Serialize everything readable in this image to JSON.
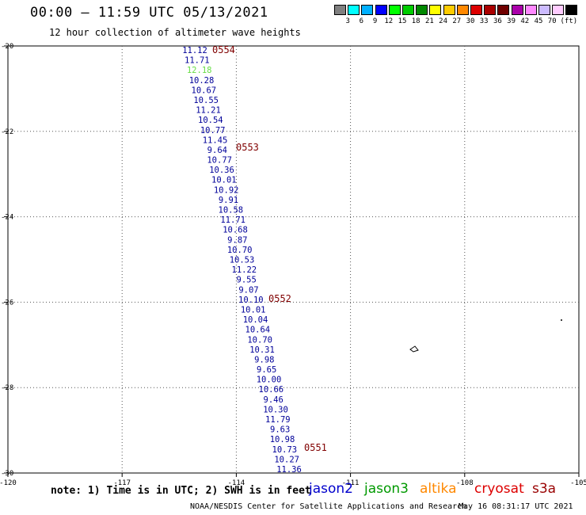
{
  "header": {
    "title": "00:00 – 11:59 UTC 05/13/2021",
    "subtitle": "12 hour collection of altimeter wave heights"
  },
  "colorbar": {
    "colors": [
      "#808080",
      "#00ffff",
      "#00b0ff",
      "#0000ff",
      "#00ff00",
      "#00cc00",
      "#008800",
      "#ffff00",
      "#ffcc00",
      "#ff8800",
      "#dd0000",
      "#aa0000",
      "#700000",
      "#aa00aa",
      "#ff88ff",
      "#ccbbff",
      "#ffccff",
      "#000000"
    ],
    "labels": [
      "3",
      "6",
      "9",
      "12",
      "15",
      "18",
      "21",
      "24",
      "27",
      "30",
      "33",
      "36",
      "39",
      "42",
      "45",
      "70",
      "(ft)"
    ]
  },
  "map": {
    "lon_ticks": [
      "-120",
      "-117",
      "-114",
      "-111",
      "-108",
      "-105"
    ],
    "lat_ticks": [
      "-20",
      "-22",
      "-24",
      "-26",
      "-28",
      "-30"
    ],
    "lon_range": [
      -120,
      -105
    ],
    "lat_range": [
      -20,
      -30
    ]
  },
  "passes": [
    {
      "label": "0554",
      "color": "#800000"
    },
    {
      "label": "0553",
      "color": "#800000"
    },
    {
      "label": "0552",
      "color": "#800000"
    },
    {
      "label": "0551",
      "color": "#800000"
    }
  ],
  "heights": [
    {
      "value": "11.12",
      "color": "#000099"
    },
    {
      "value": "11.71",
      "color": "#000099"
    },
    {
      "value": "12.18",
      "color": "#66dd44"
    },
    {
      "value": "10.28",
      "color": "#000099"
    },
    {
      "value": "10.67",
      "color": "#000099"
    },
    {
      "value": "10.55",
      "color": "#000099"
    },
    {
      "value": "11.21",
      "color": "#000099"
    },
    {
      "value": "10.54",
      "color": "#000099"
    },
    {
      "value": "10.77",
      "color": "#000099"
    },
    {
      "value": "11.45",
      "color": "#000099"
    },
    {
      "value": "9.64",
      "color": "#000099"
    },
    {
      "value": "10.77",
      "color": "#000099"
    },
    {
      "value": "10.36",
      "color": "#000099"
    },
    {
      "value": "10.01",
      "color": "#000099"
    },
    {
      "value": "10.92",
      "color": "#000099"
    },
    {
      "value": "9.91",
      "color": "#000099"
    },
    {
      "value": "10.58",
      "color": "#000099"
    },
    {
      "value": "11.71",
      "color": "#000099"
    },
    {
      "value": "10.68",
      "color": "#000099"
    },
    {
      "value": "9.87",
      "color": "#000099"
    },
    {
      "value": "10.70",
      "color": "#000099"
    },
    {
      "value": "10.53",
      "color": "#000099"
    },
    {
      "value": "11.22",
      "color": "#000099"
    },
    {
      "value": "9.55",
      "color": "#000099"
    },
    {
      "value": "9.07",
      "color": "#000099"
    },
    {
      "value": "10.10",
      "color": "#000099"
    },
    {
      "value": "10.01",
      "color": "#000099"
    },
    {
      "value": "10.04",
      "color": "#000099"
    },
    {
      "value": "10.64",
      "color": "#000099"
    },
    {
      "value": "10.70",
      "color": "#000099"
    },
    {
      "value": "10.31",
      "color": "#000099"
    },
    {
      "value": "9.98",
      "color": "#000099"
    },
    {
      "value": "9.65",
      "color": "#000099"
    },
    {
      "value": "10.00",
      "color": "#000099"
    },
    {
      "value": "10.66",
      "color": "#000099"
    },
    {
      "value": "9.46",
      "color": "#000099"
    },
    {
      "value": "10.30",
      "color": "#000099"
    },
    {
      "value": "11.79",
      "color": "#000099"
    },
    {
      "value": "9.63",
      "color": "#000099"
    },
    {
      "value": "10.98",
      "color": "#000099"
    },
    {
      "value": "10.73",
      "color": "#000099"
    },
    {
      "value": "10.27",
      "color": "#000099"
    },
    {
      "value": "11.36",
      "color": "#000099"
    }
  ],
  "note": "note: 1) Time is in UTC; 2) SWH is in feet",
  "satellites": [
    {
      "name": "jason2",
      "color": "#0000cc"
    },
    {
      "name": "jason3",
      "color": "#009900"
    },
    {
      "name": "altika",
      "color": "#ff8800"
    },
    {
      "name": "cryosat",
      "color": "#dd0000"
    },
    {
      "name": "s3a",
      "color": "#990000"
    }
  ],
  "footer": {
    "credit": "NOAA/NESDIS Center for Satellite Applications and Research",
    "timestamp": "May 16 08:31:17 UTC 2021"
  }
}
